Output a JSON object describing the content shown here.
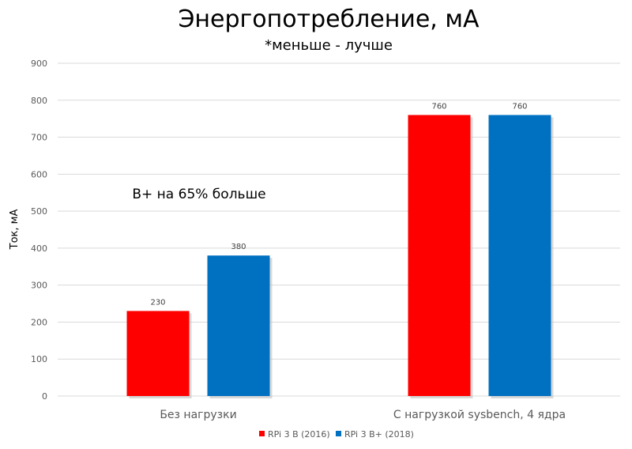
{
  "chart_data": {
    "type": "bar",
    "title": "Энергопотребление, мА",
    "subtitle": "*меньше - лучше",
    "xlabel": "",
    "ylabel": "Ток, мА",
    "ylim": [
      0,
      900
    ],
    "yticks": [
      0,
      100,
      200,
      300,
      400,
      500,
      600,
      700,
      800,
      900
    ],
    "grid": true,
    "legend_position": "bottom",
    "categories": [
      "Без нагрузки",
      "С нагрузкой sysbench, 4 ядра"
    ],
    "series": [
      {
        "name": "RPi 3 B (2016)",
        "values": [
          230,
          760
        ],
        "color": "#FF0000"
      },
      {
        "name": "RPi 3 B+ (2018)",
        "values": [
          380,
          760
        ],
        "color": "#0070C0"
      }
    ],
    "annotations": [
      "B+ на 65% больше"
    ]
  }
}
